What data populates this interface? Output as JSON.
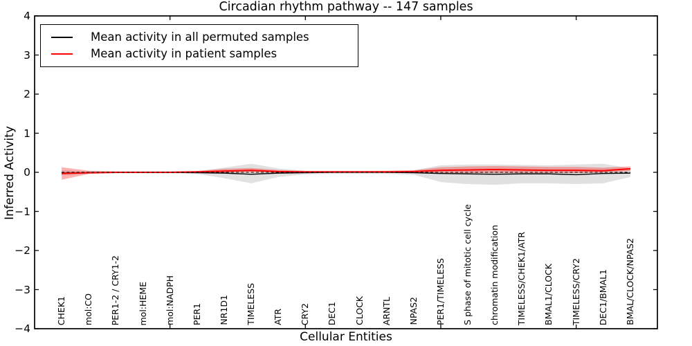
{
  "chart_data": {
    "type": "line",
    "title": "Circadian rhythm pathway -- 147 samples",
    "xlabel": "Cellular Entities",
    "ylabel": "Inferred Activity",
    "ylim": [
      -4,
      4
    ],
    "xlim": [
      0,
      23
    ],
    "yticks": [
      4,
      3,
      2,
      1,
      0,
      -1,
      -2,
      -3,
      -4
    ],
    "xticks": [
      5,
      10,
      15,
      20
    ],
    "grid": false,
    "legend_position": "upper left",
    "zero_line_style": "dashed",
    "categories": [
      "CHEK1",
      "mol:CO",
      "PER1-2 / CRY1-2",
      "mol:HEME",
      "mol:NADPH",
      "PER1",
      "NR1D1",
      "TIMELESS",
      "ATR",
      "CRY2",
      "DEC1",
      "CLOCK",
      "ARNTL",
      "NPAS2",
      "PER1/TIMELESS",
      "S phase of mitotic cell cycle",
      "chromatin modification",
      "TIMELESS/CHEK1/ATR",
      "BMAL1/CLOCK",
      "TIMELESS/CRY2",
      "DEC1/BMAL1",
      "BMAL/CLOCK/NPAS2"
    ],
    "series": [
      {
        "name": "Mean activity in all permuted samples",
        "color": "#000000",
        "values": [
          -0.02,
          -0.01,
          0,
          0,
          0,
          -0.01,
          -0.02,
          -0.05,
          -0.02,
          -0.01,
          0,
          0,
          0,
          -0.01,
          -0.03,
          -0.04,
          -0.05,
          -0.04,
          -0.04,
          -0.06,
          -0.03,
          -0.02
        ]
      },
      {
        "name": "Mean activity in patient samples",
        "color": "#ff0000",
        "values": [
          -0.03,
          -0.01,
          0,
          0,
          0,
          0.01,
          0.03,
          0.05,
          0.02,
          0.01,
          0.01,
          0.01,
          0.01,
          0.02,
          0.05,
          0.06,
          0.07,
          0.06,
          0.05,
          0.05,
          0.04,
          0.09
        ]
      }
    ],
    "bands": [
      {
        "name": "permuted-samples-std-band",
        "color": "#bcbcbc",
        "opacity": 0.45,
        "upper": [
          0.05,
          0.03,
          0.02,
          0.02,
          0.02,
          0.03,
          0.12,
          0.22,
          0.1,
          0.04,
          0.03,
          0.03,
          0.03,
          0.05,
          0.18,
          0.2,
          0.2,
          0.19,
          0.18,
          0.2,
          0.22,
          0.1
        ],
        "lower": [
          -0.07,
          -0.04,
          -0.03,
          -0.03,
          -0.03,
          -0.04,
          -0.15,
          -0.28,
          -0.12,
          -0.05,
          -0.04,
          -0.04,
          -0.04,
          -0.06,
          -0.25,
          -0.3,
          -0.32,
          -0.28,
          -0.28,
          -0.3,
          -0.28,
          -0.12
        ]
      },
      {
        "name": "patient-samples-std-band",
        "color": "#ff0000",
        "opacity": 0.3,
        "upper": [
          0.13,
          0.04,
          0.02,
          0.02,
          0.02,
          0.03,
          0.09,
          0.11,
          0.06,
          0.03,
          0.03,
          0.03,
          0.04,
          0.05,
          0.13,
          0.15,
          0.16,
          0.15,
          0.14,
          0.14,
          0.12,
          0.15
        ],
        "lower": [
          -0.19,
          -0.04,
          -0.01,
          -0.01,
          -0.01,
          -0.01,
          -0.01,
          0.0,
          -0.01,
          -0.01,
          -0.01,
          -0.01,
          -0.01,
          -0.01,
          -0.02,
          -0.02,
          -0.02,
          -0.02,
          -0.02,
          -0.02,
          -0.01,
          0.03
        ]
      }
    ]
  }
}
